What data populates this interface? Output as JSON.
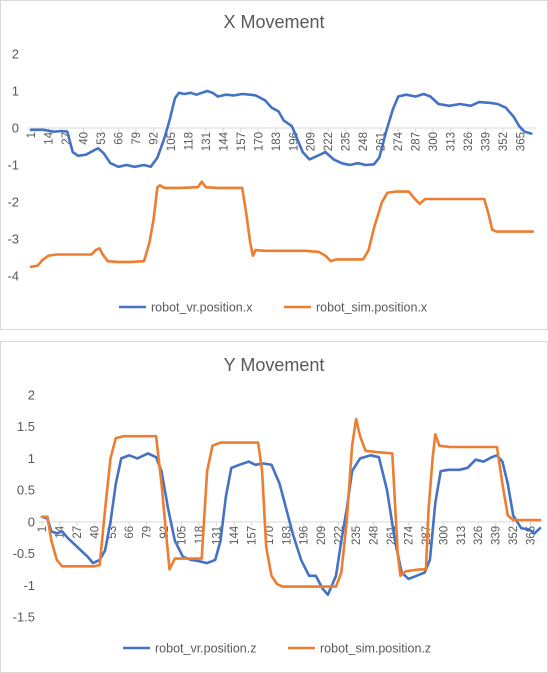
{
  "chart_data": [
    {
      "type": "line",
      "title": "X Movement",
      "xlabel": "",
      "ylabel": "",
      "ylim": [
        -4,
        2
      ],
      "yticks": [
        2,
        1,
        0,
        -1,
        -2,
        -3,
        -4
      ],
      "x_range": [
        1,
        375
      ],
      "xticks": [
        1,
        14,
        27,
        40,
        53,
        66,
        79,
        92,
        105,
        118,
        131,
        144,
        157,
        170,
        183,
        196,
        209,
        222,
        235,
        248,
        261,
        274,
        287,
        300,
        313,
        326,
        339,
        352,
        365
      ],
      "legend_position": "bottom",
      "grid": false,
      "series": [
        {
          "name": "robot_vr.position.x",
          "color": "#4472C4",
          "points": [
            [
              1,
              -0.05
            ],
            [
              10,
              -0.05
            ],
            [
              18,
              -0.1
            ],
            [
              24,
              -0.08
            ],
            [
              28,
              -0.1
            ],
            [
              32,
              -0.65
            ],
            [
              36,
              -0.75
            ],
            [
              42,
              -0.72
            ],
            [
              48,
              -0.6
            ],
            [
              51,
              -0.55
            ],
            [
              55,
              -0.68
            ],
            [
              60,
              -0.95
            ],
            [
              66,
              -1.05
            ],
            [
              72,
              -1.0
            ],
            [
              78,
              -1.05
            ],
            [
              85,
              -1.0
            ],
            [
              90,
              -1.05
            ],
            [
              95,
              -0.8
            ],
            [
              100,
              -0.3
            ],
            [
              104,
              0.2
            ],
            [
              108,
              0.8
            ],
            [
              111,
              0.95
            ],
            [
              115,
              0.92
            ],
            [
              120,
              0.95
            ],
            [
              124,
              0.9
            ],
            [
              128,
              0.95
            ],
            [
              132,
              1.0
            ],
            [
              136,
              0.95
            ],
            [
              140,
              0.85
            ],
            [
              146,
              0.9
            ],
            [
              152,
              0.88
            ],
            [
              158,
              0.92
            ],
            [
              164,
              0.9
            ],
            [
              168,
              0.88
            ],
            [
              175,
              0.75
            ],
            [
              180,
              0.55
            ],
            [
              185,
              0.45
            ],
            [
              189,
              0.2
            ],
            [
              195,
              0.05
            ],
            [
              199,
              -0.3
            ],
            [
              203,
              -0.65
            ],
            [
              208,
              -0.85
            ],
            [
              214,
              -0.75
            ],
            [
              220,
              -0.65
            ],
            [
              226,
              -0.85
            ],
            [
              232,
              -0.95
            ],
            [
              238,
              -1.0
            ],
            [
              244,
              -0.95
            ],
            [
              250,
              -1.0
            ],
            [
              256,
              -0.98
            ],
            [
              260,
              -0.8
            ],
            [
              265,
              -0.1
            ],
            [
              270,
              0.5
            ],
            [
              274,
              0.85
            ],
            [
              280,
              0.9
            ],
            [
              287,
              0.85
            ],
            [
              293,
              0.92
            ],
            [
              298,
              0.85
            ],
            [
              304,
              0.65
            ],
            [
              312,
              0.6
            ],
            [
              320,
              0.65
            ],
            [
              328,
              0.6
            ],
            [
              334,
              0.7
            ],
            [
              342,
              0.68
            ],
            [
              348,
              0.65
            ],
            [
              354,
              0.55
            ],
            [
              360,
              0.3
            ],
            [
              364,
              0.05
            ],
            [
              368,
              -0.1
            ],
            [
              373,
              -0.15
            ]
          ]
        },
        {
          "name": "robot_sim.position.x",
          "color": "#ED7D31",
          "points": [
            [
              1,
              -3.75
            ],
            [
              6,
              -3.72
            ],
            [
              10,
              -3.55
            ],
            [
              14,
              -3.45
            ],
            [
              20,
              -3.42
            ],
            [
              30,
              -3.42
            ],
            [
              40,
              -3.42
            ],
            [
              46,
              -3.42
            ],
            [
              49,
              -3.3
            ],
            [
              52,
              -3.25
            ],
            [
              54,
              -3.4
            ],
            [
              58,
              -3.6
            ],
            [
              65,
              -3.62
            ],
            [
              75,
              -3.62
            ],
            [
              85,
              -3.6
            ],
            [
              89,
              -3.1
            ],
            [
              92,
              -2.5
            ],
            [
              95,
              -1.6
            ],
            [
              97,
              -1.55
            ],
            [
              100,
              -1.62
            ],
            [
              112,
              -1.62
            ],
            [
              125,
              -1.6
            ],
            [
              128,
              -1.45
            ],
            [
              131,
              -1.6
            ],
            [
              140,
              -1.62
            ],
            [
              150,
              -1.62
            ],
            [
              158,
              -1.62
            ],
            [
              161,
              -2.3
            ],
            [
              164,
              -3.1
            ],
            [
              166,
              -3.45
            ],
            [
              168,
              -3.3
            ],
            [
              175,
              -3.32
            ],
            [
              190,
              -3.32
            ],
            [
              205,
              -3.32
            ],
            [
              215,
              -3.35
            ],
            [
              220,
              -3.45
            ],
            [
              224,
              -3.6
            ],
            [
              228,
              -3.55
            ],
            [
              240,
              -3.55
            ],
            [
              248,
              -3.55
            ],
            [
              252,
              -3.3
            ],
            [
              256,
              -2.7
            ],
            [
              262,
              -2.0
            ],
            [
              266,
              -1.75
            ],
            [
              272,
              -1.72
            ],
            [
              282,
              -1.72
            ],
            [
              286,
              -1.9
            ],
            [
              290,
              -2.05
            ],
            [
              294,
              -1.92
            ],
            [
              305,
              -1.92
            ],
            [
              320,
              -1.92
            ],
            [
              332,
              -1.92
            ],
            [
              338,
              -1.92
            ],
            [
              341,
              -2.3
            ],
            [
              344,
              -2.75
            ],
            [
              347,
              -2.8
            ],
            [
              360,
              -2.8
            ],
            [
              374,
              -2.8
            ]
          ]
        }
      ]
    },
    {
      "type": "line",
      "title": "Y Movement",
      "xlabel": "",
      "ylabel": "",
      "ylim": [
        -1.5,
        2
      ],
      "yticks": [
        2,
        1.5,
        1,
        0.5,
        0,
        -0.5,
        -1,
        -1.5
      ],
      "x_range": [
        1,
        372
      ],
      "xticks": [
        1,
        14,
        27,
        40,
        53,
        66,
        79,
        92,
        105,
        118,
        131,
        144,
        157,
        170,
        183,
        196,
        209,
        222,
        235,
        248,
        261,
        274,
        287,
        300,
        313,
        326,
        339,
        352,
        365
      ],
      "legend_position": "bottom",
      "grid": false,
      "series": [
        {
          "name": "robot_vr.position.z",
          "color": "#4472C4",
          "points": [
            [
              1,
              0.08
            ],
            [
              5,
              0.05
            ],
            [
              8,
              -0.15
            ],
            [
              12,
              -0.18
            ],
            [
              16,
              -0.15
            ],
            [
              20,
              -0.25
            ],
            [
              25,
              -0.35
            ],
            [
              30,
              -0.45
            ],
            [
              35,
              -0.55
            ],
            [
              39,
              -0.65
            ],
            [
              44,
              -0.6
            ],
            [
              48,
              -0.45
            ],
            [
              52,
              0.0
            ],
            [
              56,
              0.6
            ],
            [
              60,
              1.0
            ],
            [
              66,
              1.05
            ],
            [
              72,
              1.0
            ],
            [
              80,
              1.08
            ],
            [
              86,
              1.02
            ],
            [
              90,
              0.8
            ],
            [
              95,
              0.2
            ],
            [
              100,
              -0.3
            ],
            [
              106,
              -0.55
            ],
            [
              112,
              -0.6
            ],
            [
              118,
              -0.62
            ],
            [
              124,
              -0.65
            ],
            [
              130,
              -0.6
            ],
            [
              134,
              -0.3
            ],
            [
              138,
              0.4
            ],
            [
              142,
              0.85
            ],
            [
              148,
              0.9
            ],
            [
              155,
              0.95
            ],
            [
              160,
              0.9
            ],
            [
              166,
              0.92
            ],
            [
              172,
              0.9
            ],
            [
              178,
              0.6
            ],
            [
              183,
              0.2
            ],
            [
              188,
              -0.2
            ],
            [
              194,
              -0.6
            ],
            [
              200,
              -0.85
            ],
            [
              205,
              -0.85
            ],
            [
              210,
              -1.05
            ],
            [
              214,
              -1.15
            ],
            [
              220,
              -0.85
            ],
            [
              224,
              -0.3
            ],
            [
              228,
              0.2
            ],
            [
              232,
              0.8
            ],
            [
              238,
              1.0
            ],
            [
              246,
              1.05
            ],
            [
              252,
              1.02
            ],
            [
              258,
              0.5
            ],
            [
              264,
              -0.3
            ],
            [
              269,
              -0.8
            ],
            [
              274,
              -0.9
            ],
            [
              280,
              -0.85
            ],
            [
              286,
              -0.8
            ],
            [
              290,
              -0.6
            ],
            [
              294,
              0.3
            ],
            [
              298,
              0.8
            ],
            [
              304,
              0.82
            ],
            [
              312,
              0.82
            ],
            [
              318,
              0.85
            ],
            [
              324,
              0.98
            ],
            [
              330,
              0.95
            ],
            [
              336,
              1.02
            ],
            [
              340,
              1.05
            ],
            [
              344,
              0.95
            ],
            [
              348,
              0.6
            ],
            [
              352,
              0.1
            ],
            [
              358,
              -0.1
            ],
            [
              364,
              -0.12
            ],
            [
              368,
              -0.18
            ],
            [
              372,
              -0.1
            ]
          ]
        },
        {
          "name": "robot_sim.position.z",
          "color": "#ED7D31",
          "points": [
            [
              1,
              0.08
            ],
            [
              5,
              0.08
            ],
            [
              8,
              -0.3
            ],
            [
              12,
              -0.6
            ],
            [
              16,
              -0.7
            ],
            [
              25,
              -0.7
            ],
            [
              40,
              -0.7
            ],
            [
              44,
              -0.68
            ],
            [
              48,
              0.2
            ],
            [
              52,
              1.0
            ],
            [
              56,
              1.32
            ],
            [
              62,
              1.35
            ],
            [
              80,
              1.35
            ],
            [
              86,
              1.35
            ],
            [
              90,
              0.6
            ],
            [
              94,
              -0.3
            ],
            [
              96,
              -0.75
            ],
            [
              100,
              -0.58
            ],
            [
              115,
              -0.58
            ],
            [
              120,
              -0.58
            ],
            [
              124,
              0.8
            ],
            [
              128,
              1.2
            ],
            [
              134,
              1.25
            ],
            [
              150,
              1.25
            ],
            [
              162,
              1.25
            ],
            [
              165,
              0.8
            ],
            [
              168,
              -0.4
            ],
            [
              172,
              -0.85
            ],
            [
              176,
              -0.98
            ],
            [
              180,
              -1.02
            ],
            [
              190,
              -1.02
            ],
            [
              205,
              -1.02
            ],
            [
              220,
              -1.02
            ],
            [
              224,
              -0.8
            ],
            [
              228,
              0.0
            ],
            [
              232,
              1.2
            ],
            [
              235,
              1.62
            ],
            [
              238,
              1.35
            ],
            [
              242,
              1.12
            ],
            [
              250,
              1.1
            ],
            [
              262,
              1.08
            ],
            [
              266,
              -0.5
            ],
            [
              268,
              -0.85
            ],
            [
              272,
              -0.78
            ],
            [
              282,
              -0.75
            ],
            [
              287,
              -0.75
            ],
            [
              289,
              0.2
            ],
            [
              292,
              1.0
            ],
            [
              294,
              1.38
            ],
            [
              297,
              1.2
            ],
            [
              305,
              1.18
            ],
            [
              320,
              1.18
            ],
            [
              335,
              1.18
            ],
            [
              340,
              1.18
            ],
            [
              344,
              0.6
            ],
            [
              348,
              0.1
            ],
            [
              352,
              0.03
            ],
            [
              362,
              0.03
            ],
            [
              372,
              0.03
            ]
          ]
        }
      ]
    }
  ]
}
